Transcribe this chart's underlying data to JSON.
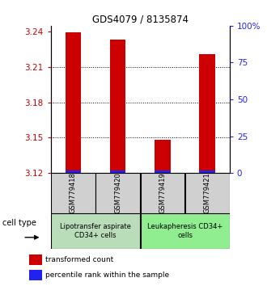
{
  "title": "GDS4079 / 8135874",
  "samples": [
    "GSM779418",
    "GSM779420",
    "GSM779419",
    "GSM779421"
  ],
  "red_values": [
    3.2395,
    3.233,
    3.148,
    3.221
  ],
  "ylim_left": [
    3.12,
    3.245
  ],
  "ylim_right": [
    0,
    100
  ],
  "yticks_left": [
    3.12,
    3.15,
    3.18,
    3.21,
    3.24
  ],
  "yticks_right": [
    0,
    25,
    50,
    75,
    100
  ],
  "ytick_labels_right": [
    "0",
    "25",
    "50",
    "75",
    "100%"
  ],
  "bar_width": 0.35,
  "blue_bar_height": 0.0025,
  "group_labels": [
    "Lipotransfer aspirate\nCD34+ cells",
    "Leukapheresis CD34+\ncells"
  ],
  "group_colors_left": [
    "#c8e8c8",
    "#90ee90"
  ],
  "group_colors_right": [
    "#90ee90",
    "#90ee90"
  ],
  "group_ranges": [
    [
      0,
      1
    ],
    [
      2,
      3
    ]
  ],
  "cell_type_label": "cell type",
  "legend_red": "transformed count",
  "legend_blue": "percentile rank within the sample",
  "red_color": "#cc0000",
  "blue_color": "#2222ee",
  "sample_box_color": "#d0d0d0",
  "title_fontsize": 8.5,
  "axis_fontsize": 7.5,
  "sample_fontsize": 6,
  "group_fontsize": 6,
  "legend_fontsize": 6.5
}
